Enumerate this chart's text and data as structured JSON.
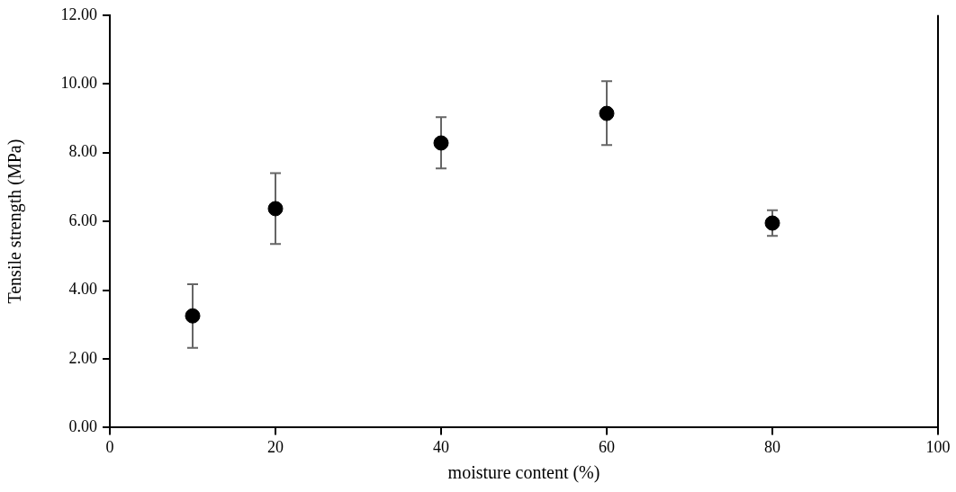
{
  "chart_data": {
    "type": "scatter",
    "xlabel": "moisture content (%)",
    "ylabel": "Tensile strength (MPa)",
    "x": [
      10,
      20,
      40,
      60,
      80
    ],
    "series": [
      {
        "color": "#000000",
        "values": [
          3.25,
          6.37,
          8.28,
          9.14,
          5.95
        ],
        "errors": [
          [
            2.32,
            4.17
          ],
          [
            5.34,
            7.4
          ],
          [
            7.54,
            9.03
          ],
          [
            8.22,
            10.08
          ],
          [
            5.58,
            6.32
          ]
        ]
      }
    ],
    "xlim": [
      0,
      100
    ],
    "xticks": [
      0,
      20,
      40,
      60,
      80,
      100
    ],
    "ylim": [
      0,
      12
    ],
    "yticks": [
      {
        "value": 0,
        "label": "0.00"
      },
      {
        "value": 2,
        "label": "2.00"
      },
      {
        "value": 4,
        "label": "4.00"
      },
      {
        "value": 6,
        "label": "6.00"
      },
      {
        "value": 8,
        "label": "8.00"
      },
      {
        "value": 10,
        "label": "10.00"
      },
      {
        "value": 12,
        "label": "12.00"
      }
    ],
    "grid": false,
    "legend": false,
    "marker": "circle"
  }
}
